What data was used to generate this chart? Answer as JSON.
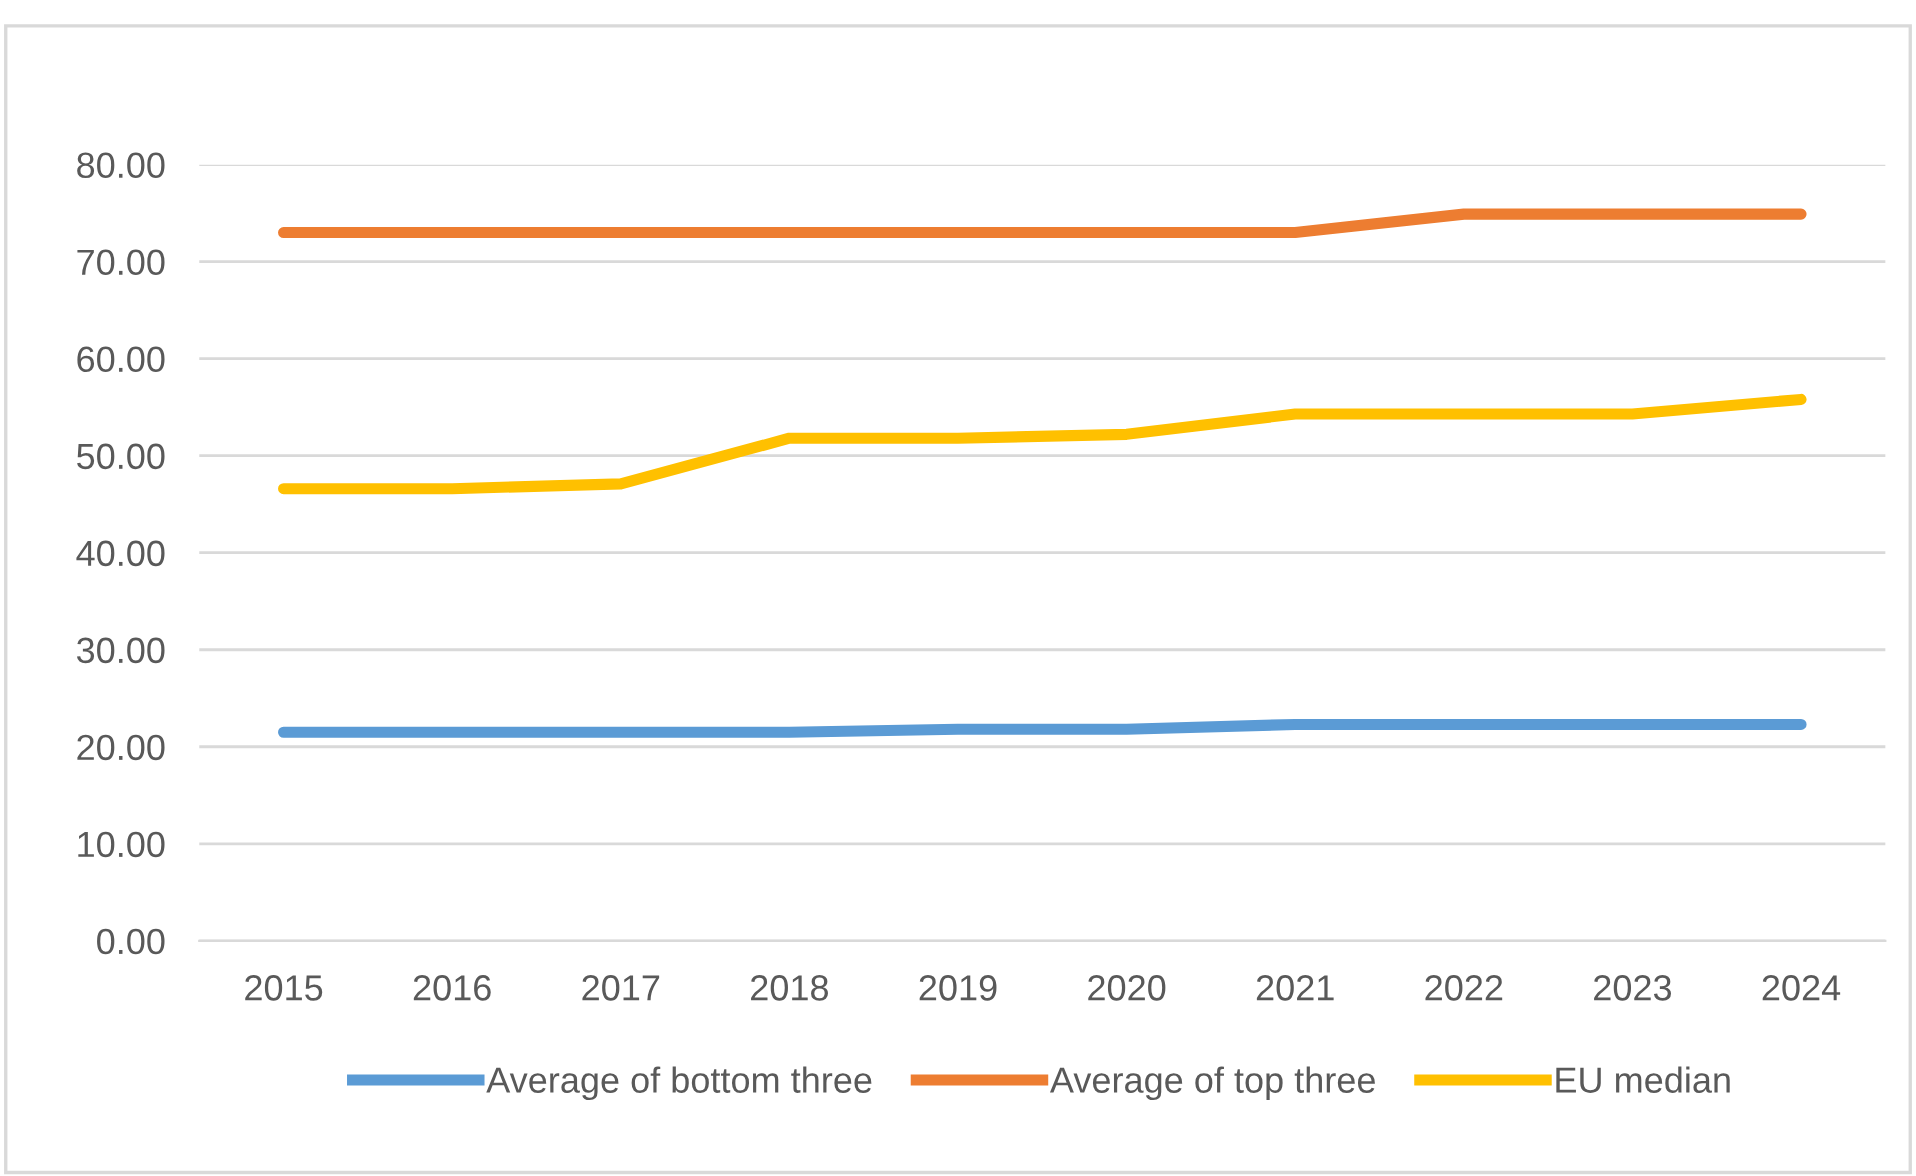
{
  "chart_data": {
    "type": "line",
    "categories": [
      "2015",
      "2016",
      "2017",
      "2018",
      "2019",
      "2020",
      "2021",
      "2022",
      "2023",
      "2024"
    ],
    "series": [
      {
        "name": "Average of bottom three",
        "color": "#5b9bd5",
        "values": [
          21.5,
          21.5,
          21.5,
          21.5,
          21.8,
          21.8,
          22.3,
          22.3,
          22.3,
          22.3
        ]
      },
      {
        "name": "Average of top three",
        "color": "#ed7d31",
        "values": [
          73.0,
          73.0,
          73.0,
          73.0,
          73.0,
          73.0,
          73.0,
          74.9,
          74.9,
          74.9
        ]
      },
      {
        "name": "EU median",
        "color": "#ffc000",
        "values": [
          46.6,
          46.6,
          47.1,
          51.8,
          51.8,
          52.2,
          54.3,
          54.3,
          54.3,
          55.8
        ]
      }
    ],
    "ylim": [
      0,
      80
    ],
    "yticks": [
      {
        "value": 0,
        "label": "0.00"
      },
      {
        "value": 10,
        "label": "10.00"
      },
      {
        "value": 20,
        "label": "20.00"
      },
      {
        "value": 30,
        "label": "30.00"
      },
      {
        "value": 40,
        "label": "40.00"
      },
      {
        "value": 50,
        "label": "50.00"
      },
      {
        "value": 60,
        "label": "60.00"
      },
      {
        "value": 70,
        "label": "70.00"
      },
      {
        "value": 80,
        "label": "80.00"
      }
    ],
    "grid": "y",
    "legend": "bottom",
    "marker": "none",
    "line_style": "solid"
  }
}
